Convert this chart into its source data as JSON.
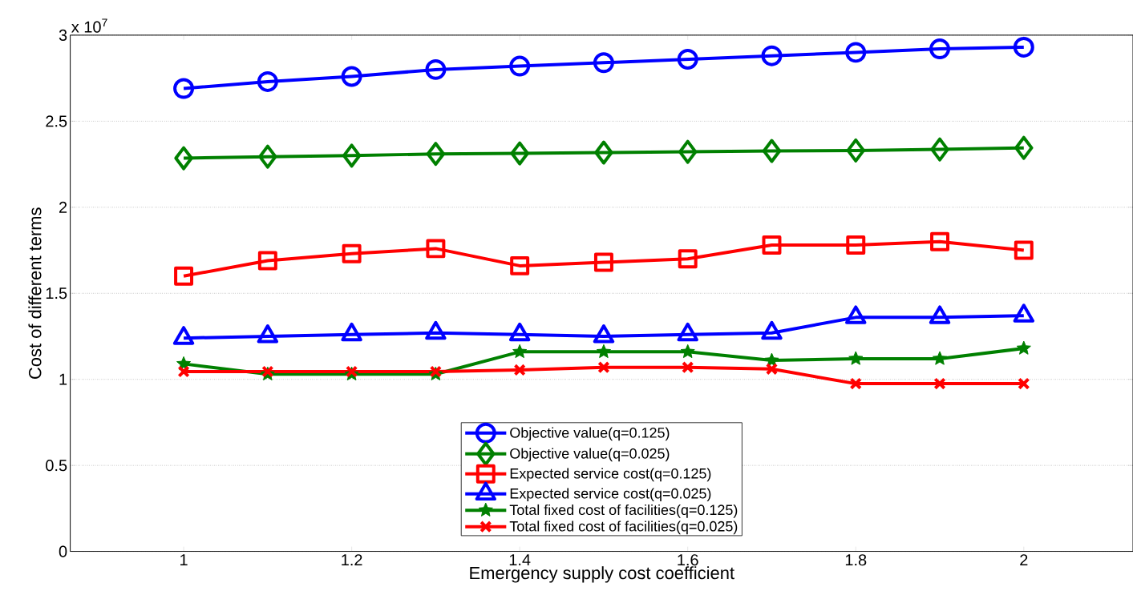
{
  "chart_data": {
    "type": "line",
    "xlabel": "Emergency supply cost coefficient",
    "ylabel": "Cost of different terms",
    "annotations": [
      "x 10$^{7}$"
    ],
    "x": [
      1,
      1.1,
      1.2,
      1.3,
      1.4,
      1.5,
      1.6,
      1.7,
      1.8,
      1.9,
      2
    ],
    "xlim": [
      0.865,
      2.13
    ],
    "xticks": [
      1,
      1.2,
      1.4,
      1.6,
      1.8,
      2
    ],
    "ylim": [
      0,
      3
    ],
    "yticks": [
      0,
      0.5,
      1,
      1.5,
      2,
      2.5,
      3
    ],
    "grid": "y",
    "legend": "bottom",
    "line_style": "solid",
    "series": [
      {
        "name": "Objective value(q=0.125)",
        "color": "#0000ff",
        "marker": "circle",
        "values": [
          2.69,
          2.73,
          2.76,
          2.8,
          2.82,
          2.84,
          2.86,
          2.88,
          2.9,
          2.92,
          2.93
        ]
      },
      {
        "name": "Objective value(q=0.025)",
        "color": "#008000",
        "marker": "diamond",
        "values": [
          2.285,
          2.294,
          2.3,
          2.31,
          2.313,
          2.318,
          2.322,
          2.327,
          2.33,
          2.336,
          2.345
        ]
      },
      {
        "name": "Expected service cost(q=0.125)",
        "color": "#ff0000",
        "marker": "square",
        "values": [
          1.6,
          1.69,
          1.73,
          1.76,
          1.66,
          1.68,
          1.7,
          1.78,
          1.78,
          1.8,
          1.75
        ]
      },
      {
        "name": "Expected service cost(q=0.025)",
        "color": "#0000ff",
        "marker": "triangle",
        "values": [
          1.24,
          1.25,
          1.26,
          1.27,
          1.26,
          1.25,
          1.26,
          1.27,
          1.36,
          1.36,
          1.37
        ]
      },
      {
        "name": "Total fixed cost of facilities(q=0.125)",
        "color": "#008000",
        "marker": "star",
        "values": [
          1.09,
          1.03,
          1.03,
          1.03,
          1.16,
          1.16,
          1.16,
          1.11,
          1.12,
          1.12,
          1.18
        ]
      },
      {
        "name": "Total fixed cost of facilities(q=0.025)",
        "color": "#ff0000",
        "marker": "cross",
        "values": [
          1.045,
          1.045,
          1.045,
          1.045,
          1.055,
          1.07,
          1.07,
          1.06,
          0.975,
          0.975,
          0.975
        ]
      }
    ]
  }
}
